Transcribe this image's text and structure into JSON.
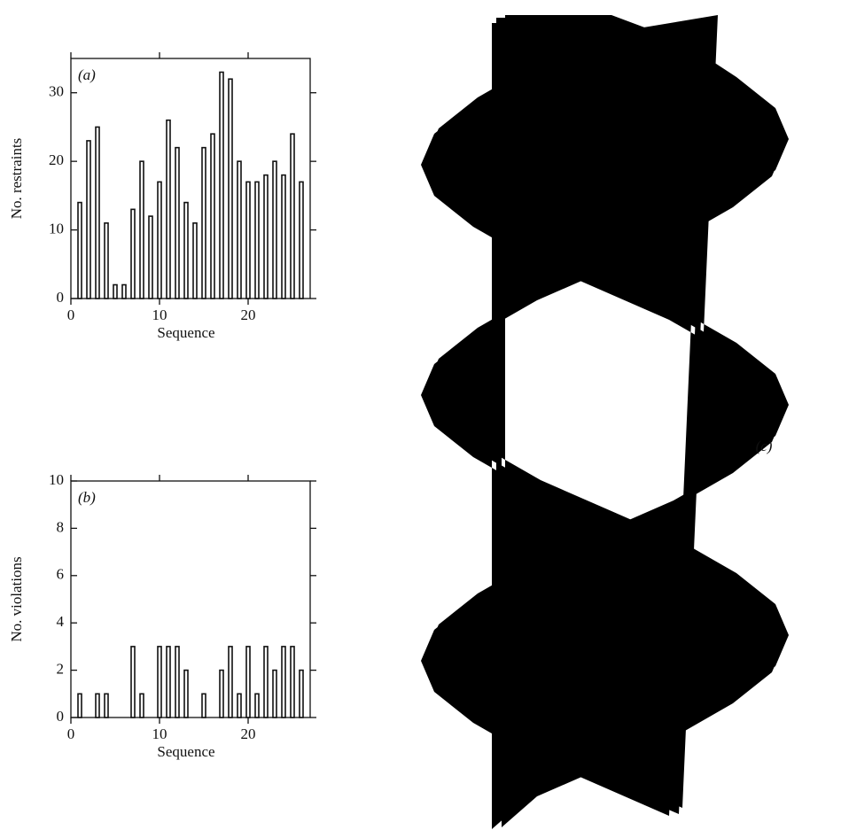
{
  "chart_data": [
    {
      "type": "bar",
      "panel_label": "(a)",
      "xlabel": "Sequence",
      "ylabel": "No. restraints",
      "x": [
        1,
        2,
        3,
        4,
        5,
        6,
        7,
        8,
        9,
        10,
        11,
        12,
        13,
        14,
        15,
        16,
        17,
        18,
        19,
        20,
        21,
        22,
        23,
        24,
        25,
        26
      ],
      "values": [
        14,
        23,
        25,
        11,
        2,
        2,
        13,
        20,
        12,
        17,
        26,
        22,
        14,
        11,
        22,
        24,
        33,
        32,
        20,
        17,
        17,
        18,
        20,
        18,
        24,
        17
      ],
      "xlim": [
        0,
        27
      ],
      "xticks": [
        0,
        10,
        20
      ],
      "ylim": [
        0,
        35
      ],
      "yticks": [
        0,
        10,
        20,
        30
      ],
      "color": "#111111"
    },
    {
      "type": "bar",
      "panel_label": "(b)",
      "xlabel": "Sequence",
      "ylabel": "No. violations",
      "x": [
        1,
        3,
        4,
        7,
        8,
        10,
        11,
        12,
        13,
        15,
        17,
        18,
        19,
        20,
        21,
        22,
        23,
        24,
        25,
        26
      ],
      "values": [
        1,
        1,
        1,
        3,
        1,
        3,
        3,
        3,
        2,
        1,
        2,
        3,
        1,
        3,
        1,
        3,
        2,
        3,
        3,
        2
      ],
      "xlim": [
        0,
        27
      ],
      "xticks": [
        0,
        10,
        20
      ],
      "ylim": [
        0,
        10
      ],
      "yticks": [
        0,
        2,
        4,
        6,
        8,
        10
      ],
      "color": "#111111"
    }
  ],
  "figure": {
    "panel_c_label": "(c)"
  }
}
